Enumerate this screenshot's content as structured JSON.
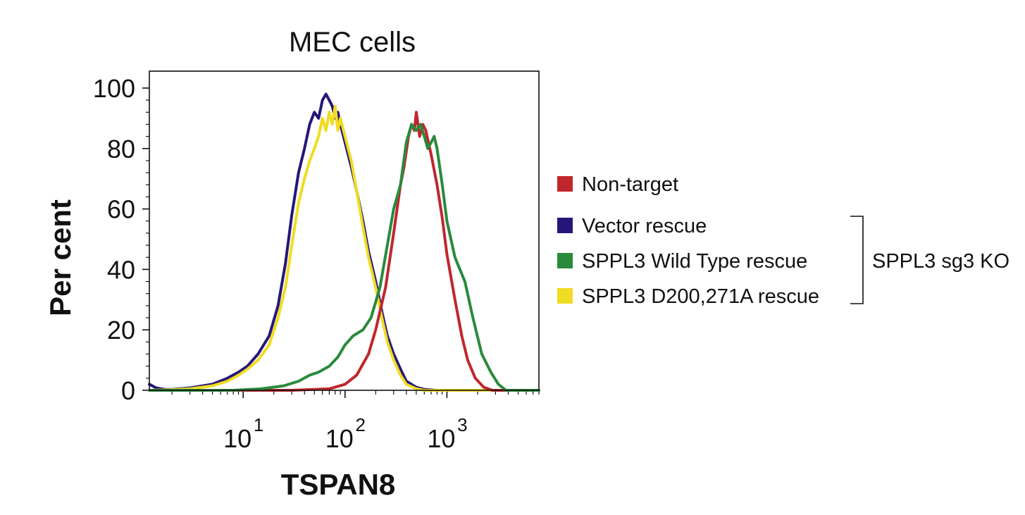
{
  "chart_data": {
    "type": "line",
    "title": "MEC cells",
    "xlabel": "TSPAN8",
    "ylabel": "Per cent",
    "xscale": "log",
    "xlim": [
      1.2,
      8000
    ],
    "ylim": [
      0,
      100
    ],
    "yticks": [
      "0",
      "20",
      "40",
      "60",
      "80",
      "100"
    ],
    "xticks": [
      {
        "value": 10,
        "base": "10",
        "exp": "1"
      },
      {
        "value": 100,
        "base": "10",
        "exp": "2"
      },
      {
        "value": 1000,
        "base": "10",
        "exp": "3"
      }
    ],
    "grid": false,
    "legend_position": "right",
    "series": [
      {
        "name": "Non-target",
        "color": "#c0272d",
        "x": [
          1.2,
          30,
          70,
          100,
          130,
          170,
          200,
          250,
          300,
          350,
          380,
          420,
          450,
          480,
          500,
          540,
          580,
          620,
          700,
          800,
          900,
          1000,
          1200,
          1400,
          1600,
          1900,
          2300,
          2800,
          3500,
          8000
        ],
        "y": [
          0,
          0,
          0.5,
          2,
          5,
          12,
          20,
          34,
          52,
          68,
          74,
          84,
          88,
          86,
          92,
          84,
          88,
          86,
          78,
          68,
          57,
          45,
          30,
          18,
          10,
          4,
          1,
          0,
          0,
          0
        ]
      },
      {
        "name": "Vector rescue",
        "color": "#25177a",
        "x": [
          1.2,
          1.4,
          1.7,
          2,
          3,
          5,
          7,
          9,
          11,
          14,
          18,
          22,
          26,
          30,
          35,
          40,
          45,
          50,
          55,
          60,
          65,
          70,
          75,
          80,
          85,
          90,
          100,
          115,
          130,
          150,
          170,
          200,
          230,
          260,
          300,
          350,
          400,
          500,
          600,
          800,
          1000,
          8000
        ],
        "y": [
          2,
          0.8,
          0.3,
          0.3,
          0.8,
          2,
          4,
          6,
          8,
          12,
          18,
          28,
          42,
          58,
          72,
          80,
          88,
          92,
          90,
          96,
          98,
          96,
          94,
          90,
          92,
          88,
          82,
          74,
          66,
          56,
          46,
          36,
          26,
          18,
          12,
          7,
          3,
          1,
          0.3,
          0,
          0,
          0
        ]
      },
      {
        "name": "SPPL3 Wild Type rescue",
        "color": "#2a8a3c",
        "x": [
          1.2,
          8,
          15,
          25,
          35,
          45,
          55,
          70,
          85,
          100,
          120,
          150,
          180,
          220,
          260,
          300,
          350,
          400,
          450,
          500,
          550,
          600,
          650,
          700,
          750,
          800,
          900,
          1000,
          1200,
          1500,
          1800,
          2200,
          2700,
          3200,
          3800,
          8000
        ],
        "y": [
          0,
          0,
          0.5,
          1.5,
          3,
          5,
          6,
          8,
          11,
          15,
          18,
          20,
          24,
          34,
          48,
          60,
          68,
          82,
          88,
          86,
          88,
          84,
          80,
          82,
          84,
          80,
          68,
          56,
          44,
          36,
          24,
          12,
          6,
          2,
          0,
          0
        ]
      },
      {
        "name": "SPPL3 D200,271A rescue",
        "color": "#f0dc22",
        "x": [
          1.2,
          2,
          3,
          5,
          7,
          9,
          11,
          14,
          18,
          22,
          26,
          30,
          35,
          40,
          45,
          50,
          55,
          60,
          65,
          70,
          75,
          80,
          85,
          90,
          100,
          115,
          130,
          150,
          170,
          200,
          230,
          260,
          300,
          350,
          400,
          500,
          600,
          800,
          1000,
          8000
        ],
        "y": [
          0,
          0.2,
          0.5,
          1.5,
          3,
          5,
          7,
          10,
          15,
          24,
          34,
          48,
          62,
          70,
          76,
          80,
          84,
          90,
          86,
          92,
          88,
          94,
          86,
          90,
          84,
          76,
          66,
          54,
          44,
          34,
          24,
          16,
          10,
          5,
          2,
          0.5,
          0,
          0,
          0,
          0
        ]
      }
    ],
    "bracket_label": "SPPL3 sg3 KO"
  }
}
